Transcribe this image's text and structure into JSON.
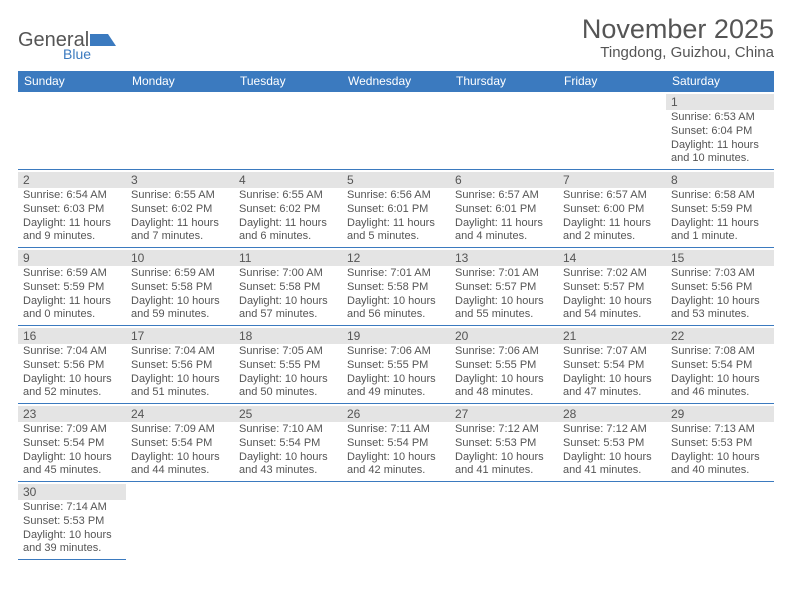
{
  "logo": {
    "text1": "General",
    "text2": "Blue"
  },
  "header": {
    "title": "November 2025",
    "location": "Tingdong, Guizhou, China"
  },
  "colors": {
    "header_bg": "#3b7abf",
    "header_text": "#ffffff",
    "text": "#555555",
    "daynum_bg": "#e4e4e4",
    "border": "#3b7abf",
    "background": "#ffffff"
  },
  "day_names": [
    "Sunday",
    "Monday",
    "Tuesday",
    "Wednesday",
    "Thursday",
    "Friday",
    "Saturday"
  ],
  "weeks": [
    [
      null,
      null,
      null,
      null,
      null,
      null,
      {
        "n": "1",
        "sunrise": "Sunrise: 6:53 AM",
        "sunset": "Sunset: 6:04 PM",
        "daylight": "Daylight: 11 hours and 10 minutes."
      }
    ],
    [
      {
        "n": "2",
        "sunrise": "Sunrise: 6:54 AM",
        "sunset": "Sunset: 6:03 PM",
        "daylight": "Daylight: 11 hours and 9 minutes."
      },
      {
        "n": "3",
        "sunrise": "Sunrise: 6:55 AM",
        "sunset": "Sunset: 6:02 PM",
        "daylight": "Daylight: 11 hours and 7 minutes."
      },
      {
        "n": "4",
        "sunrise": "Sunrise: 6:55 AM",
        "sunset": "Sunset: 6:02 PM",
        "daylight": "Daylight: 11 hours and 6 minutes."
      },
      {
        "n": "5",
        "sunrise": "Sunrise: 6:56 AM",
        "sunset": "Sunset: 6:01 PM",
        "daylight": "Daylight: 11 hours and 5 minutes."
      },
      {
        "n": "6",
        "sunrise": "Sunrise: 6:57 AM",
        "sunset": "Sunset: 6:01 PM",
        "daylight": "Daylight: 11 hours and 4 minutes."
      },
      {
        "n": "7",
        "sunrise": "Sunrise: 6:57 AM",
        "sunset": "Sunset: 6:00 PM",
        "daylight": "Daylight: 11 hours and 2 minutes."
      },
      {
        "n": "8",
        "sunrise": "Sunrise: 6:58 AM",
        "sunset": "Sunset: 5:59 PM",
        "daylight": "Daylight: 11 hours and 1 minute."
      }
    ],
    [
      {
        "n": "9",
        "sunrise": "Sunrise: 6:59 AM",
        "sunset": "Sunset: 5:59 PM",
        "daylight": "Daylight: 11 hours and 0 minutes."
      },
      {
        "n": "10",
        "sunrise": "Sunrise: 6:59 AM",
        "sunset": "Sunset: 5:58 PM",
        "daylight": "Daylight: 10 hours and 59 minutes."
      },
      {
        "n": "11",
        "sunrise": "Sunrise: 7:00 AM",
        "sunset": "Sunset: 5:58 PM",
        "daylight": "Daylight: 10 hours and 57 minutes."
      },
      {
        "n": "12",
        "sunrise": "Sunrise: 7:01 AM",
        "sunset": "Sunset: 5:58 PM",
        "daylight": "Daylight: 10 hours and 56 minutes."
      },
      {
        "n": "13",
        "sunrise": "Sunrise: 7:01 AM",
        "sunset": "Sunset: 5:57 PM",
        "daylight": "Daylight: 10 hours and 55 minutes."
      },
      {
        "n": "14",
        "sunrise": "Sunrise: 7:02 AM",
        "sunset": "Sunset: 5:57 PM",
        "daylight": "Daylight: 10 hours and 54 minutes."
      },
      {
        "n": "15",
        "sunrise": "Sunrise: 7:03 AM",
        "sunset": "Sunset: 5:56 PM",
        "daylight": "Daylight: 10 hours and 53 minutes."
      }
    ],
    [
      {
        "n": "16",
        "sunrise": "Sunrise: 7:04 AM",
        "sunset": "Sunset: 5:56 PM",
        "daylight": "Daylight: 10 hours and 52 minutes."
      },
      {
        "n": "17",
        "sunrise": "Sunrise: 7:04 AM",
        "sunset": "Sunset: 5:56 PM",
        "daylight": "Daylight: 10 hours and 51 minutes."
      },
      {
        "n": "18",
        "sunrise": "Sunrise: 7:05 AM",
        "sunset": "Sunset: 5:55 PM",
        "daylight": "Daylight: 10 hours and 50 minutes."
      },
      {
        "n": "19",
        "sunrise": "Sunrise: 7:06 AM",
        "sunset": "Sunset: 5:55 PM",
        "daylight": "Daylight: 10 hours and 49 minutes."
      },
      {
        "n": "20",
        "sunrise": "Sunrise: 7:06 AM",
        "sunset": "Sunset: 5:55 PM",
        "daylight": "Daylight: 10 hours and 48 minutes."
      },
      {
        "n": "21",
        "sunrise": "Sunrise: 7:07 AM",
        "sunset": "Sunset: 5:54 PM",
        "daylight": "Daylight: 10 hours and 47 minutes."
      },
      {
        "n": "22",
        "sunrise": "Sunrise: 7:08 AM",
        "sunset": "Sunset: 5:54 PM",
        "daylight": "Daylight: 10 hours and 46 minutes."
      }
    ],
    [
      {
        "n": "23",
        "sunrise": "Sunrise: 7:09 AM",
        "sunset": "Sunset: 5:54 PM",
        "daylight": "Daylight: 10 hours and 45 minutes."
      },
      {
        "n": "24",
        "sunrise": "Sunrise: 7:09 AM",
        "sunset": "Sunset: 5:54 PM",
        "daylight": "Daylight: 10 hours and 44 minutes."
      },
      {
        "n": "25",
        "sunrise": "Sunrise: 7:10 AM",
        "sunset": "Sunset: 5:54 PM",
        "daylight": "Daylight: 10 hours and 43 minutes."
      },
      {
        "n": "26",
        "sunrise": "Sunrise: 7:11 AM",
        "sunset": "Sunset: 5:54 PM",
        "daylight": "Daylight: 10 hours and 42 minutes."
      },
      {
        "n": "27",
        "sunrise": "Sunrise: 7:12 AM",
        "sunset": "Sunset: 5:53 PM",
        "daylight": "Daylight: 10 hours and 41 minutes."
      },
      {
        "n": "28",
        "sunrise": "Sunrise: 7:12 AM",
        "sunset": "Sunset: 5:53 PM",
        "daylight": "Daylight: 10 hours and 41 minutes."
      },
      {
        "n": "29",
        "sunrise": "Sunrise: 7:13 AM",
        "sunset": "Sunset: 5:53 PM",
        "daylight": "Daylight: 10 hours and 40 minutes."
      }
    ],
    [
      {
        "n": "30",
        "sunrise": "Sunrise: 7:14 AM",
        "sunset": "Sunset: 5:53 PM",
        "daylight": "Daylight: 10 hours and 39 minutes."
      },
      null,
      null,
      null,
      null,
      null,
      null
    ]
  ]
}
